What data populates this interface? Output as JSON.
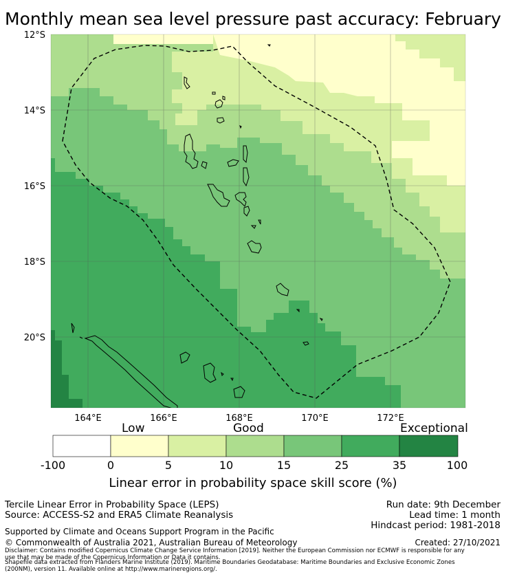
{
  "title": "Monthly mean sea level pressure past accuracy: February",
  "map": {
    "lat_labels": [
      "12°S",
      "14°S",
      "16°S",
      "18°S",
      "20°S"
    ],
    "lon_labels": [
      "164°E",
      "166°E",
      "168°E",
      "170°E",
      "172°E"
    ],
    "region": "Vanuatu EEZ",
    "colors": {
      "low": "#ffffcc",
      "light": "#d9f0a3",
      "mid": "#addd8e",
      "good": "#78c679",
      "high": "#41ab5d",
      "exceptional": "#238443",
      "eez_line": "#000000",
      "grid": "#555555"
    }
  },
  "legend": {
    "categories": [
      "Low",
      "Good",
      "Exceptional"
    ],
    "ticks": [
      "-100",
      "0",
      "5",
      "10",
      "15",
      "25",
      "35",
      "100"
    ],
    "colors": [
      "#ffffff",
      "#ffffcc",
      "#d9f0a3",
      "#addd8e",
      "#78c679",
      "#41ab5d",
      "#238443"
    ],
    "title": "Linear error in probability space skill score (%)"
  },
  "info": {
    "line1": "Tercile Linear Error in Probability Space (LEPS)",
    "line2": "Source: ACCESS-S2 and ERA5 Climate Reanalysis",
    "run_date": "Run date: 9th December",
    "lead_time": "Lead time: 1 month",
    "hindcast": "Hindcast period: 1981-2018",
    "supported": "Supported by Climate and Oceans Support Program in the Pacific",
    "copyright": "© Commonwealth of Australia 2021, Australian Bureau of Meteorology",
    "created": "Created: 27/10/2021",
    "disclaimer1": "Disclaimer: Contains modified Copernicus Climate Change Service Information [2019]. Neither the European Commission nor ECMWF is responsible for any",
    "disclaimer2": "use that may be made of the Copernicus Information or Data it contains.",
    "shapefile1": "Shapefile data extracted from Flanders Marine Institute (2019). Maritime Boundaries Geodatabase: Maritime Boundaries and Exclusive Economic Zones",
    "shapefile2": "(200NM), version 11. Available online at http://www.marineregions.org/."
  }
}
